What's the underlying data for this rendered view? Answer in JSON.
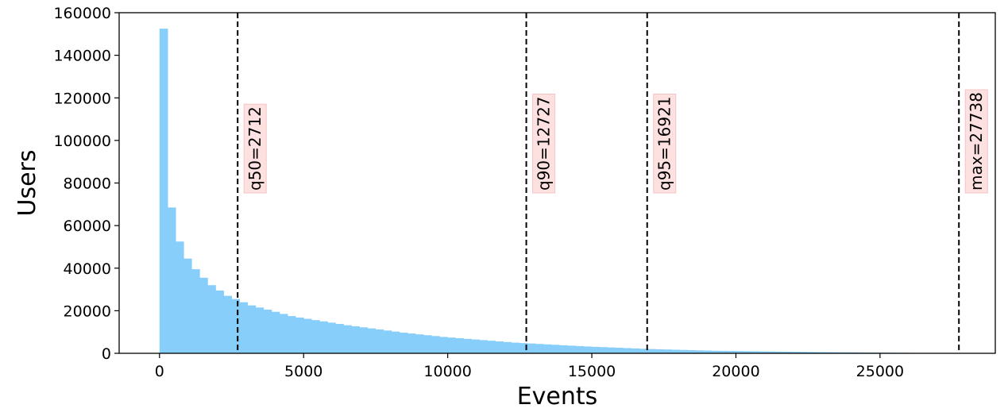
{
  "chart_data": {
    "type": "bar",
    "subtype": "histogram",
    "xlabel": "Events",
    "ylabel": "Users",
    "xlim": [
      -1400,
      29000
    ],
    "ylim": [
      0,
      160000
    ],
    "xticks": [
      0,
      5000,
      10000,
      15000,
      20000,
      25000
    ],
    "xtick_labels": [
      "0",
      "5000",
      "10000",
      "15000",
      "20000",
      "25000"
    ],
    "yticks": [
      0,
      20000,
      40000,
      60000,
      80000,
      100000,
      120000,
      140000,
      160000
    ],
    "ytick_labels": [
      "0",
      "20000",
      "40000",
      "60000",
      "80000",
      "100000",
      "120000",
      "140000",
      "160000"
    ],
    "bar_color": "#87cefa",
    "bin_start": 0,
    "bin_width": 277.38,
    "values": [
      152500,
      68500,
      52500,
      44500,
      39500,
      35500,
      32000,
      29500,
      27000,
      25500,
      24000,
      22500,
      21500,
      20500,
      19500,
      18500,
      17500,
      16800,
      16200,
      15600,
      15000,
      14400,
      13800,
      13200,
      12700,
      12200,
      11700,
      11200,
      10700,
      10200,
      9700,
      9300,
      8900,
      8500,
      8100,
      7700,
      7400,
      7100,
      6800,
      6500,
      6200,
      5900,
      5600,
      5300,
      5000,
      4800,
      4600,
      4400,
      4200,
      4000,
      3800,
      3600,
      3400,
      3200,
      3050,
      2900,
      2750,
      2600,
      2450,
      2300,
      2150,
      2000,
      1900,
      1800,
      1700,
      1600,
      1500,
      1400,
      1300,
      1200,
      1150,
      1100,
      1050,
      1000,
      950,
      900,
      850,
      800,
      750,
      700,
      660,
      620,
      580,
      540,
      500,
      470,
      440,
      410,
      380,
      350,
      320,
      290,
      260,
      230,
      200,
      170,
      140,
      110,
      80,
      60
    ],
    "markers": [
      {
        "x": 2712,
        "label": "q50=2712"
      },
      {
        "x": 12727,
        "label": "q90=12727"
      },
      {
        "x": 16921,
        "label": "q95=16921"
      },
      {
        "x": 27738,
        "label": "max=27738"
      }
    ],
    "marker_label_bg": "#fde0e0",
    "marker_label_border": "#f5c4c4",
    "grid": false,
    "legend": "none"
  }
}
